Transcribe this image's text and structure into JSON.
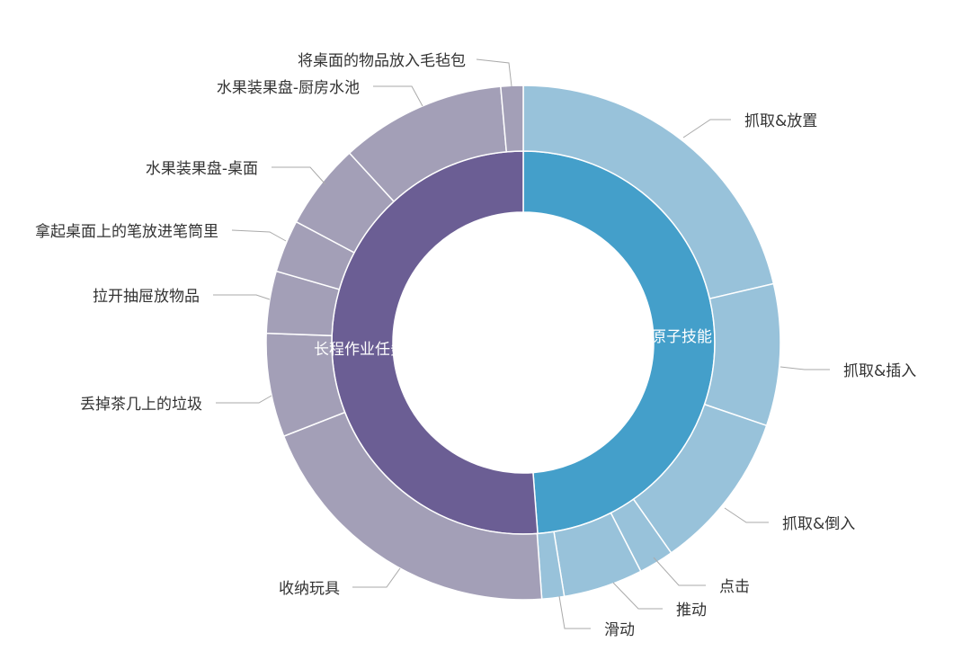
{
  "chart_data": {
    "type": "sunburst",
    "unit": "percent (estimated from arc angles)",
    "colors": {
      "inner_right": "#449fca",
      "inner_left": "#6b5e94",
      "outer_right": "#98c2da",
      "outer_left": "#a39fb7",
      "label": "#333333",
      "leader": "#aaaaaa"
    },
    "inner": [
      {
        "name": "原子技能",
        "value": 48.8
      },
      {
        "name": "长程作业任务",
        "value": 51.2
      }
    ],
    "outer": [
      {
        "name": "抓取&放置",
        "parent": "原子技能",
        "value": 21.3
      },
      {
        "name": "抓取&插入",
        "parent": "原子技能",
        "value": 8.9
      },
      {
        "name": "抓取&倒入",
        "parent": "原子技能",
        "value": 10.0
      },
      {
        "name": "点击",
        "parent": "原子技能",
        "value": 2.2
      },
      {
        "name": "推动",
        "parent": "原子技能",
        "value": 5.0
      },
      {
        "name": "滑动",
        "parent": "原子技能",
        "value": 1.4
      },
      {
        "name": "收纳玩具",
        "parent": "长程作业任务",
        "value": 20.2
      },
      {
        "name": "丢掉茶几上的垃圾",
        "parent": "长程作业任务",
        "value": 6.5
      },
      {
        "name": "拉开抽屉放物品",
        "parent": "长程作业任务",
        "value": 3.9
      },
      {
        "name": "拿起桌面上的笔放进笔筒里",
        "parent": "长程作业任务",
        "value": 3.3
      },
      {
        "name": "水果装果盘-桌面",
        "parent": "长程作业任务",
        "value": 5.4
      },
      {
        "name": "水果装果盘-厨房水池",
        "parent": "长程作业任务",
        "value": 10.4
      },
      {
        "name": "将桌面的物品放入毛毡包",
        "parent": "长程作业任务",
        "value": 1.4
      }
    ]
  }
}
